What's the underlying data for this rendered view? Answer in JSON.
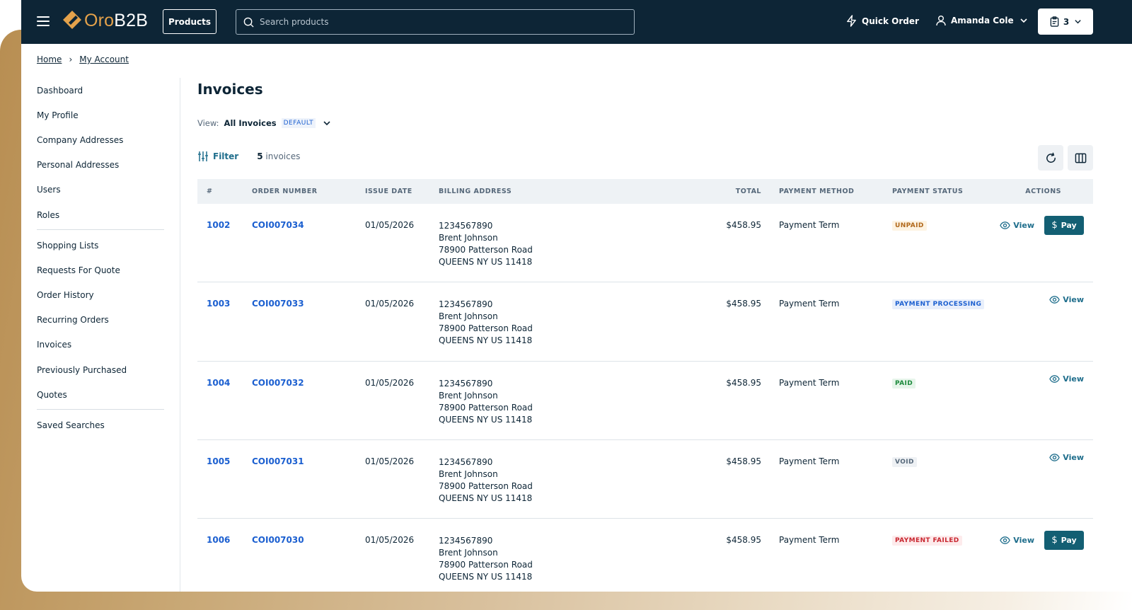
{
  "header": {
    "logo_text_oro": "Oro",
    "logo_text_b2b": "B2B",
    "products_label": "Products",
    "search_placeholder": "Search products",
    "quick_order_label": "Quick Order",
    "user_name": "Amanda Cole",
    "cart_count": "3"
  },
  "breadcrumb": {
    "home": "Home",
    "account": "My Account",
    "separator": "›"
  },
  "sidebar": {
    "items": [
      {
        "label": "Dashboard"
      },
      {
        "label": "My Profile"
      },
      {
        "label": "Company Addresses"
      },
      {
        "label": "Personal Addresses"
      },
      {
        "label": "Users"
      },
      {
        "label": "Roles"
      },
      {
        "label": "Shopping Lists"
      },
      {
        "label": "Requests For Quote"
      },
      {
        "label": "Order History"
      },
      {
        "label": "Recurring Orders"
      },
      {
        "label": "Invoices"
      },
      {
        "label": "Previously Purchased"
      },
      {
        "label": "Quotes"
      },
      {
        "label": "Saved Searches"
      }
    ]
  },
  "main": {
    "title": "Invoices",
    "view_label": "View:",
    "view_value": "All Invoices",
    "view_badge": "DEFAULT",
    "filter_label": "Filter",
    "count_number": "5",
    "count_text": "invoices"
  },
  "table": {
    "headers": {
      "num": "#",
      "order": "ORDER NUMBER",
      "date": "ISSUE DATE",
      "address": "BILLING ADDRESS",
      "total": "TOTAL",
      "method": "PAYMENT METHOD",
      "status": "PAYMENT STATUS",
      "actions": "ACTIONS"
    },
    "view_label": "View",
    "pay_label": "Pay",
    "pay_symbol": "$",
    "rows": [
      {
        "num": "1002",
        "order": "COI007034",
        "date": "01/05/2026",
        "addr1": "1234567890",
        "addr2": "Brent Johnson",
        "addr3": "78900 Patterson Road",
        "addr4": "QUEENS NY US 11418",
        "total": "$458.95",
        "method": "Payment Term",
        "status": "UNPAID"
      },
      {
        "num": "1003",
        "order": "COI007033",
        "date": "01/05/2026",
        "addr1": "1234567890",
        "addr2": "Brent Johnson",
        "addr3": "78900 Patterson Road",
        "addr4": "QUEENS NY US 11418",
        "total": "$458.95",
        "method": "Payment Term",
        "status": "PAYMENT PROCESSING"
      },
      {
        "num": "1004",
        "order": "COI007032",
        "date": "01/05/2026",
        "addr1": "1234567890",
        "addr2": "Brent Johnson",
        "addr3": "78900 Patterson Road",
        "addr4": "QUEENS NY US 11418",
        "total": "$458.95",
        "method": "Payment Term",
        "status": "PAID"
      },
      {
        "num": "1005",
        "order": "COI007031",
        "date": "01/05/2026",
        "addr1": "1234567890",
        "addr2": "Brent Johnson",
        "addr3": "78900 Patterson Road",
        "addr4": "QUEENS NY US 11418",
        "total": "$458.95",
        "method": "Payment Term",
        "status": "VOID"
      },
      {
        "num": "1006",
        "order": "COI007030",
        "date": "01/05/2026",
        "addr1": "1234567890",
        "addr2": "Brent Johnson",
        "addr3": "78900 Patterson Road",
        "addr4": "QUEENS NY US 11418",
        "total": "$458.95",
        "method": "Payment Term",
        "status": "PAYMENT FAILED"
      }
    ]
  },
  "colors": {
    "header_bg": "#0d2536",
    "link_blue": "#1b5fd0",
    "pay_button": "#135f73",
    "logo_orange": "#e4a24b"
  },
  "icons": {
    "menu": "hamburger-menu-icon",
    "search": "search-icon",
    "quick_order": "lightning-icon",
    "user": "user-icon",
    "cart": "clipboard-icon",
    "filter": "sliders-icon",
    "refresh": "refresh-icon",
    "columns": "columns-icon",
    "view": "eye-icon"
  }
}
